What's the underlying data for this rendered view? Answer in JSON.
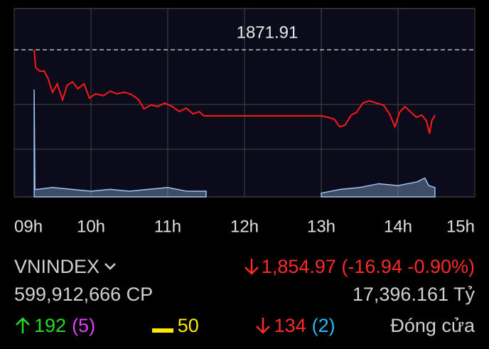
{
  "chart_data": {
    "type": "line",
    "xlim": [
      9,
      15
    ],
    "xticks": [
      {
        "value": 9,
        "label": "09h"
      },
      {
        "value": 10,
        "label": "10h"
      },
      {
        "value": 11,
        "label": "11h"
      },
      {
        "value": 12,
        "label": "12h"
      },
      {
        "value": 13,
        "label": "13h"
      },
      {
        "value": 14,
        "label": "14h"
      },
      {
        "value": 15,
        "label": "15h"
      }
    ],
    "ylim": [
      1833.8,
      1882.6
    ],
    "y2lim": [
      0,
      100
    ],
    "reference": 1871.91,
    "series": [
      {
        "color": "#ff1a1a",
        "x": [
          9.26,
          9.28,
          9.33,
          9.39,
          9.44,
          9.5,
          9.56,
          9.63,
          9.69,
          9.76,
          9.83,
          9.91,
          9.98,
          10.06,
          10.16,
          10.25,
          10.34,
          10.44,
          10.53,
          10.62,
          10.69,
          10.78,
          10.87,
          10.96,
          11.06,
          11.15,
          11.24,
          11.33,
          11.41,
          11.47,
          11.5,
          13.0,
          13.09,
          13.17,
          13.24,
          13.31,
          13.39,
          13.46,
          13.54,
          13.63,
          13.72,
          13.81,
          13.89,
          13.96,
          14.02,
          14.09,
          14.17,
          14.24,
          14.31,
          14.37,
          14.41,
          14.44,
          14.48
        ],
        "values": [
          1871.9,
          1867.3,
          1866.4,
          1866.4,
          1864.5,
          1860.9,
          1863.1,
          1859.0,
          1862.7,
          1863.6,
          1861.8,
          1863.1,
          1859.4,
          1860.5,
          1860.0,
          1861.2,
          1860.5,
          1860.9,
          1860.3,
          1859.0,
          1856.6,
          1857.6,
          1857.2,
          1858.1,
          1857.2,
          1855.9,
          1856.8,
          1855.3,
          1855.9,
          1854.8,
          1854.8,
          1854.8,
          1854.4,
          1853.9,
          1852.0,
          1852.4,
          1855.0,
          1855.7,
          1858.1,
          1858.7,
          1858.1,
          1857.6,
          1855.3,
          1852.0,
          1855.7,
          1857.2,
          1855.7,
          1854.4,
          1855.0,
          1853.5,
          1850.2,
          1853.5,
          1854.97
        ]
      },
      {
        "color": "#9fc5f0",
        "axis": "y2",
        "x": [
          9.26,
          9.27,
          9.3,
          9.5,
          9.75,
          10.0,
          10.25,
          10.5,
          10.75,
          11.0,
          11.25,
          11.5,
          12.0,
          13.0,
          13.25,
          13.5,
          13.75,
          14.0,
          14.25,
          14.35,
          14.4,
          14.48
        ],
        "values": [
          57,
          4,
          4,
          5,
          4,
          3,
          4,
          3,
          4,
          5,
          3,
          3,
          null,
          2,
          4,
          5,
          7,
          6,
          8,
          10,
          6,
          5
        ]
      }
    ]
  },
  "info": {
    "symbol": "VNINDEX",
    "price_line": "1,854.97 (-16.94 -0.90%)",
    "volume": "599,912,666 CP",
    "value": "17,396.161 Tỷ",
    "advancers": "192",
    "ceiling": "(5)",
    "unchanged": "50",
    "decliners": "134",
    "floor": "(2)",
    "status": "Đóng cửa"
  }
}
